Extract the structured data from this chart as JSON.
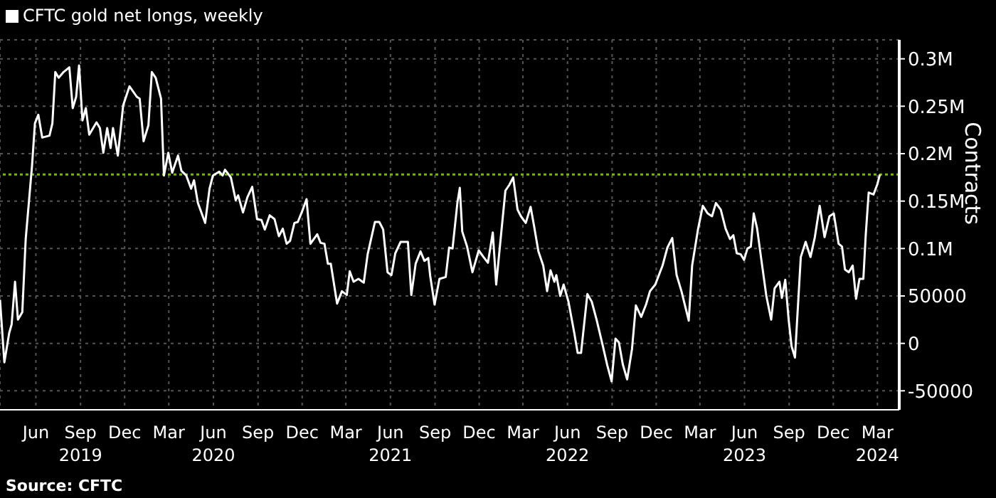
{
  "chart_data": {
    "type": "line",
    "ylabel": "Contracts",
    "legend": "top left",
    "grid": true,
    "marker": "none",
    "line_style": "solid",
    "annotations": [
      "Source: CFTC"
    ],
    "xlim": [
      "2019-03-19",
      "2024-04-15"
    ],
    "xticks": [
      {
        "value": "2019-06-01",
        "label": "Jun"
      },
      {
        "value": "2019-09-01",
        "label": "Sep\n2019"
      },
      {
        "value": "2019-12-01",
        "label": "Dec"
      },
      {
        "value": "2020-03-01",
        "label": "Mar"
      },
      {
        "value": "2020-06-01",
        "label": "Jun\n2020"
      },
      {
        "value": "2020-09-01",
        "label": "Sep"
      },
      {
        "value": "2020-12-01",
        "label": "Dec"
      },
      {
        "value": "2021-03-01",
        "label": "Mar"
      },
      {
        "value": "2021-06-01",
        "label": "Jun\n2021"
      },
      {
        "value": "2021-09-01",
        "label": "Sep"
      },
      {
        "value": "2021-12-01",
        "label": "Dec"
      },
      {
        "value": "2022-03-01",
        "label": "Mar"
      },
      {
        "value": "2022-06-01",
        "label": "Jun\n2022"
      },
      {
        "value": "2022-09-01",
        "label": "Sep"
      },
      {
        "value": "2022-12-01",
        "label": "Dec"
      },
      {
        "value": "2023-03-01",
        "label": "Mar"
      },
      {
        "value": "2023-06-01",
        "label": "Jun\n2023"
      },
      {
        "value": "2023-09-01",
        "label": "Sep"
      },
      {
        "value": "2023-12-01",
        "label": "Dec"
      },
      {
        "value": "2024-03-01",
        "label": "Mar\n2024"
      }
    ],
    "ylim": [
      -70000,
      320000
    ],
    "yticks": [
      {
        "value": -50000,
        "label": "-50000"
      },
      {
        "value": 0,
        "label": "0"
      },
      {
        "value": 50000,
        "label": "50000"
      },
      {
        "value": 100000,
        "label": "0.1M"
      },
      {
        "value": 150000,
        "label": "0.15M"
      },
      {
        "value": 200000,
        "label": "0.2M"
      },
      {
        "value": 250000,
        "label": "0.25M"
      },
      {
        "value": 300000,
        "label": "0.3M"
      }
    ],
    "ref_lines": [
      {
        "axis": "y",
        "value": 178000,
        "color": "#7ab317",
        "line_style": "dotted"
      }
    ],
    "series": [
      {
        "name": "CFTC gold net longs, weekly",
        "color": "#ffffff",
        "x": [
          "2019-03-19",
          "2019-03-28",
          "2019-04-07",
          "2019-04-12",
          "2019-04-19",
          "2019-04-25",
          "2019-05-04",
          "2019-05-11",
          "2019-05-24",
          "2019-05-30",
          "2019-06-06",
          "2019-06-14",
          "2019-06-29",
          "2019-07-05",
          "2019-07-11",
          "2019-07-18",
          "2019-07-28",
          "2019-08-09",
          "2019-08-16",
          "2019-08-23",
          "2019-08-29",
          "2019-09-05",
          "2019-09-12",
          "2019-09-19",
          "2019-10-04",
          "2019-10-11",
          "2019-10-18",
          "2019-10-26",
          "2019-11-02",
          "2019-11-07",
          "2019-11-17",
          "2019-11-28",
          "2019-12-11",
          "2019-12-26",
          "2020-01-01",
          "2020-01-09",
          "2020-01-19",
          "2020-01-26",
          "2020-02-03",
          "2020-02-14",
          "2020-02-20",
          "2020-02-29",
          "2020-03-08",
          "2020-03-20",
          "2020-03-27",
          "2020-04-06",
          "2020-04-16",
          "2020-04-22",
          "2020-04-30",
          "2020-05-15",
          "2020-05-24",
          "2020-05-31",
          "2020-06-13",
          "2020-06-20",
          "2020-06-25",
          "2020-07-07",
          "2020-07-17",
          "2020-07-22",
          "2020-08-01",
          "2020-08-10",
          "2020-08-20",
          "2020-08-30",
          "2020-09-08",
          "2020-09-15",
          "2020-09-25",
          "2020-10-05",
          "2020-10-14",
          "2020-10-22",
          "2020-10-30",
          "2020-11-06",
          "2020-11-15",
          "2020-11-22",
          "2020-11-30",
          "2020-12-10",
          "2020-12-18",
          "2021-01-01",
          "2021-01-08",
          "2021-01-16",
          "2021-01-23",
          "2021-01-29",
          "2021-02-11",
          "2021-02-21",
          "2021-03-03",
          "2021-03-09",
          "2021-03-17",
          "2021-03-27",
          "2021-04-07",
          "2021-04-15",
          "2021-04-30",
          "2021-05-09",
          "2021-05-17",
          "2021-05-26",
          "2021-06-03",
          "2021-06-11",
          "2021-06-22",
          "2021-07-07",
          "2021-07-14",
          "2021-07-23",
          "2021-08-02",
          "2021-08-10",
          "2021-08-18",
          "2021-08-22",
          "2021-08-31",
          "2021-09-10",
          "2021-09-23",
          "2021-09-30",
          "2021-10-07",
          "2021-10-17",
          "2021-10-22",
          "2021-10-27",
          "2021-11-06",
          "2021-11-17",
          "2021-11-30",
          "2021-12-10",
          "2021-12-19",
          "2021-12-29",
          "2022-01-05",
          "2022-01-13",
          "2022-01-24",
          "2022-02-01",
          "2022-02-09",
          "2022-02-18",
          "2022-02-25",
          "2022-03-07",
          "2022-03-17",
          "2022-03-24",
          "2022-04-02",
          "2022-04-12",
          "2022-04-20",
          "2022-04-27",
          "2022-05-05",
          "2022-05-09",
          "2022-05-17",
          "2022-05-24",
          "2022-06-03",
          "2022-06-15",
          "2022-06-22",
          "2022-06-29",
          "2022-07-12",
          "2022-07-21",
          "2022-07-31",
          "2022-08-13",
          "2022-08-22",
          "2022-08-31",
          "2022-09-08",
          "2022-09-15",
          "2022-09-23",
          "2022-10-02",
          "2022-10-12",
          "2022-10-20",
          "2022-10-31",
          "2022-11-10",
          "2022-11-18",
          "2022-11-29",
          "2022-12-14",
          "2022-12-24",
          "2023-01-03",
          "2023-01-12",
          "2023-01-22",
          "2023-02-06",
          "2023-02-13",
          "2023-02-25",
          "2023-03-07",
          "2023-03-17",
          "2023-03-26",
          "2023-04-03",
          "2023-04-13",
          "2023-04-23",
          "2023-05-02",
          "2023-05-09",
          "2023-05-16",
          "2023-05-24",
          "2023-05-31",
          "2023-06-07",
          "2023-06-14",
          "2023-06-20",
          "2023-06-27",
          "2023-07-06",
          "2023-07-16",
          "2023-07-26",
          "2023-08-02",
          "2023-08-12",
          "2023-08-17",
          "2023-08-24",
          "2023-08-31",
          "2023-09-06",
          "2023-09-13",
          "2023-09-25",
          "2023-10-05",
          "2023-10-15",
          "2023-10-24",
          "2023-11-03",
          "2023-11-13",
          "2023-11-23",
          "2023-12-02",
          "2023-12-12",
          "2023-12-19",
          "2023-12-25",
          "2024-01-02",
          "2024-01-10",
          "2024-01-17",
          "2024-01-24",
          "2024-02-01",
          "2024-02-06",
          "2024-02-12",
          "2024-02-22",
          "2024-03-01",
          "2024-03-06"
        ],
        "values": [
          46000,
          -20000,
          11000,
          20000,
          65000,
          25000,
          33000,
          110000,
          187000,
          232000,
          241000,
          217000,
          219000,
          232000,
          286000,
          280000,
          286000,
          291000,
          248000,
          260000,
          293000,
          235000,
          248000,
          220000,
          233000,
          227000,
          201000,
          227000,
          206000,
          227000,
          198000,
          251000,
          271000,
          260000,
          258000,
          213000,
          230000,
          286000,
          280000,
          258000,
          177000,
          201000,
          180000,
          198000,
          182000,
          177000,
          163000,
          172000,
          148000,
          127000,
          163000,
          177000,
          181000,
          177000,
          183000,
          175000,
          151000,
          156000,
          138000,
          154000,
          165000,
          131000,
          130000,
          120000,
          135000,
          131000,
          113000,
          121000,
          105000,
          108000,
          127000,
          128000,
          138000,
          152000,
          105000,
          115000,
          106000,
          105000,
          84000,
          84000,
          42000,
          55000,
          51000,
          76000,
          65000,
          68000,
          64000,
          94000,
          128000,
          128000,
          120000,
          75000,
          72000,
          95000,
          107000,
          107000,
          51000,
          84000,
          97000,
          87000,
          90000,
          71000,
          41000,
          68000,
          70000,
          101000,
          100000,
          148000,
          164000,
          118000,
          102000,
          75000,
          98000,
          91000,
          85000,
          117000,
          62000,
          104000,
          161000,
          167000,
          175000,
          141000,
          134000,
          127000,
          144000,
          124000,
          97000,
          82000,
          55000,
          77000,
          65000,
          72000,
          50000,
          62000,
          44000,
          11000,
          -10000,
          -10000,
          52000,
          44000,
          25000,
          -3000,
          -23000,
          -40000,
          5000,
          1000,
          -22000,
          -38000,
          -6000,
          40000,
          28000,
          41000,
          55000,
          62000,
          82000,
          101000,
          111000,
          72000,
          55000,
          24000,
          82000,
          120000,
          145000,
          137000,
          134000,
          148000,
          141000,
          121000,
          110000,
          114000,
          95000,
          94000,
          88000,
          100000,
          102000,
          137000,
          121000,
          87000,
          50000,
          25000,
          58000,
          65000,
          48000,
          67000,
          25000,
          -3000,
          -15000,
          91000,
          107000,
          91000,
          112000,
          145000,
          112000,
          134000,
          137000,
          105000,
          102000,
          78000,
          75000,
          82000,
          47000,
          68000,
          68000,
          115000,
          159000,
          157000,
          168000,
          178000
        ]
      }
    ]
  }
}
